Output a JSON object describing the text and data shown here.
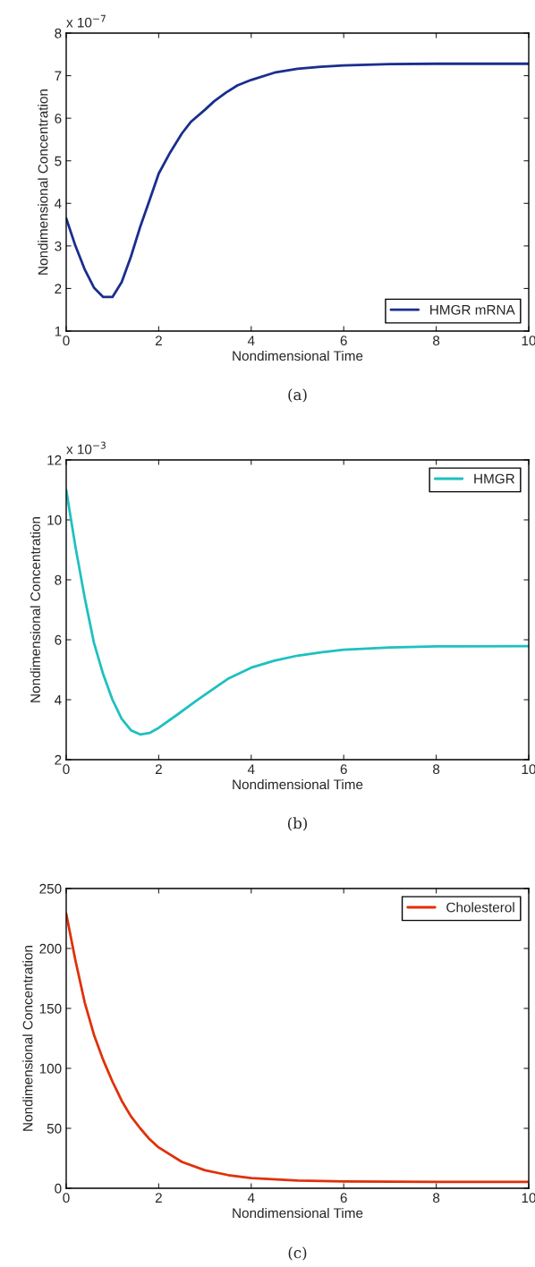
{
  "chart_data": [
    {
      "type": "line",
      "xlabel": "Nondimensional Time",
      "ylabel": "Nondimensional Concentration",
      "annotations": [
        "x 10$^{−7}$",
        "(a)"
      ],
      "xlim": [
        0,
        10
      ],
      "ylim": [
        1,
        8
      ],
      "xticks": [
        0,
        2,
        4,
        6,
        8,
        10
      ],
      "yticks": [
        1,
        2,
        3,
        4,
        5,
        6,
        7,
        8
      ],
      "legend": "bottom right",
      "series": [
        {
          "name": "HMGR mRNA",
          "color": "#1a2e8e",
          "x": [
            0,
            0.2,
            0.4,
            0.6,
            0.8,
            1.0,
            1.2,
            1.4,
            1.6,
            1.8,
            2.0,
            2.25,
            2.5,
            2.7,
            3.0,
            3.2,
            3.45,
            3.7,
            4.0,
            4.5,
            5.0,
            5.5,
            6.0,
            7.0,
            8.0,
            10.0
          ],
          "values": [
            3.65,
            3.0,
            2.45,
            2.02,
            1.8,
            1.8,
            2.15,
            2.75,
            3.45,
            4.07,
            4.7,
            5.2,
            5.64,
            5.92,
            6.2,
            6.4,
            6.6,
            6.77,
            6.9,
            7.07,
            7.16,
            7.21,
            7.24,
            7.27,
            7.28,
            7.28
          ]
        }
      ]
    },
    {
      "type": "line",
      "xlabel": "Nondimensional Time",
      "ylabel": "Nondimensional Concentration",
      "annotations": [
        "x 10$^{−3}$",
        "(b)"
      ],
      "xlim": [
        0,
        10
      ],
      "ylim": [
        2,
        12
      ],
      "xticks": [
        0,
        2,
        4,
        6,
        8,
        10
      ],
      "yticks": [
        2,
        4,
        6,
        8,
        10,
        12
      ],
      "legend": "top right",
      "series": [
        {
          "name": "HMGR",
          "color": "#1fc0c0",
          "x": [
            0,
            0.2,
            0.4,
            0.6,
            0.8,
            1.0,
            1.2,
            1.4,
            1.6,
            1.8,
            2.0,
            2.4,
            2.8,
            3.0,
            3.5,
            4.0,
            4.5,
            5.0,
            5.5,
            6.0,
            7.0,
            8.0,
            10.0
          ],
          "values": [
            11.0,
            9.1,
            7.4,
            5.9,
            4.85,
            4.0,
            3.36,
            2.98,
            2.84,
            2.89,
            3.06,
            3.5,
            3.95,
            4.17,
            4.7,
            5.07,
            5.3,
            5.47,
            5.58,
            5.67,
            5.74,
            5.78,
            5.79
          ]
        }
      ]
    },
    {
      "type": "line",
      "xlabel": "Nondimensional Time",
      "ylabel": "Nondimensional Concentration",
      "annotations": [
        "(c)"
      ],
      "xlim": [
        0,
        10
      ],
      "ylim": [
        0,
        250
      ],
      "xticks": [
        0,
        2,
        4,
        6,
        8,
        10
      ],
      "yticks": [
        0,
        50,
        100,
        150,
        200,
        250
      ],
      "legend": "top right",
      "series": [
        {
          "name": "Cholesterol",
          "color": "#e0300a",
          "x": [
            0,
            0.2,
            0.4,
            0.6,
            0.8,
            1.0,
            1.2,
            1.4,
            1.6,
            1.8,
            2.0,
            2.5,
            3.0,
            3.5,
            4.0,
            5.0,
            6.0,
            8.0,
            10.0
          ],
          "values": [
            229,
            190,
            155,
            128,
            107,
            89,
            73,
            60,
            50,
            41,
            34,
            22,
            15,
            11,
            8.5,
            6.5,
            5.7,
            5.3,
            5.3
          ]
        }
      ]
    }
  ]
}
